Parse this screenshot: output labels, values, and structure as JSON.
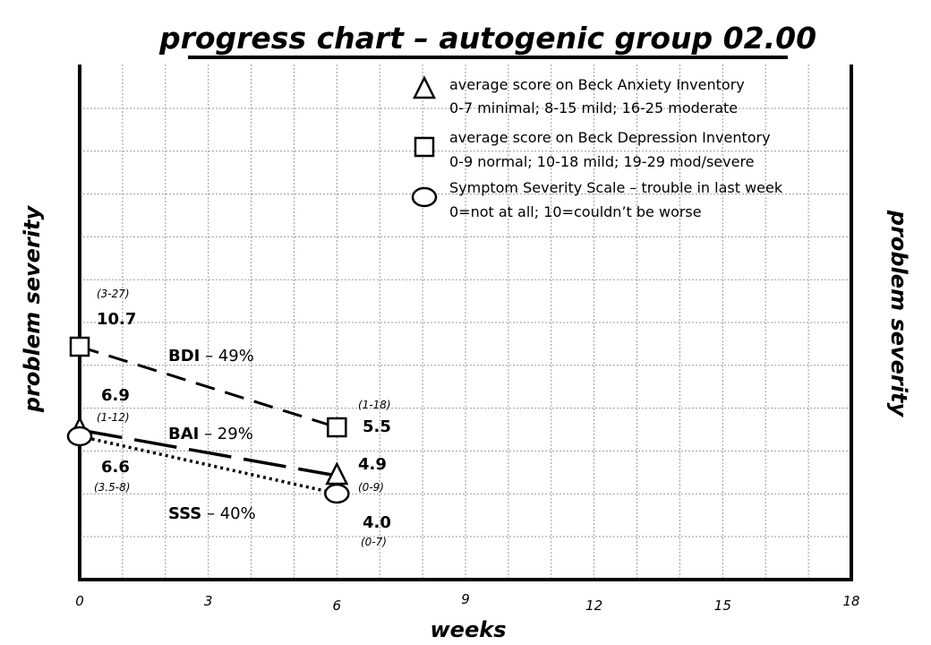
{
  "chart_data": {
    "type": "line",
    "title": "progress chart – autogenic group 02.00",
    "xlabel": "weeks",
    "ylabel": "problem severity",
    "ylabel_right": "problem severity",
    "xlim": [
      0,
      18
    ],
    "x_ticks": [
      0,
      3,
      6,
      9,
      12,
      15,
      18
    ],
    "grid": true,
    "legend_position": "top-right",
    "series": [
      {
        "key": "bai",
        "marker": "triangle",
        "dash": "long",
        "legend": [
          "average score on Beck Anxiety Inventory",
          "0-7 minimal; 8-15 mild; 16-25 moderate"
        ],
        "start": {
          "x": 0,
          "value": "6.9",
          "range": "(1-12)"
        },
        "end": {
          "x": 6,
          "value": "4.9",
          "range": "(0-9)"
        },
        "change_name": "BAI",
        "change_pct": "29%"
      },
      {
        "key": "bdi",
        "marker": "square",
        "dash": "medium",
        "legend": [
          "average score on Beck Depression Inventory",
          "0-9 normal; 10-18 mild; 19-29 mod/severe"
        ],
        "start": {
          "x": 0,
          "value": "10.7",
          "range": "(3-27)"
        },
        "end": {
          "x": 6,
          "value": "5.5",
          "range": "(1-18)"
        },
        "change_name": "BDI",
        "change_pct": "49%"
      },
      {
        "key": "sss",
        "marker": "circle",
        "dash": "dotted",
        "legend": [
          "Symptom Severity Scale – trouble in last week",
          "0=not at all; 10=couldn’t be worse"
        ],
        "start": {
          "x": 0,
          "value": "6.6",
          "range": "(3.5-8)"
        },
        "end": {
          "x": 6,
          "value": "4.0",
          "range": "(0-7)"
        },
        "change_name": "SSS",
        "change_pct": "40%"
      }
    ]
  }
}
